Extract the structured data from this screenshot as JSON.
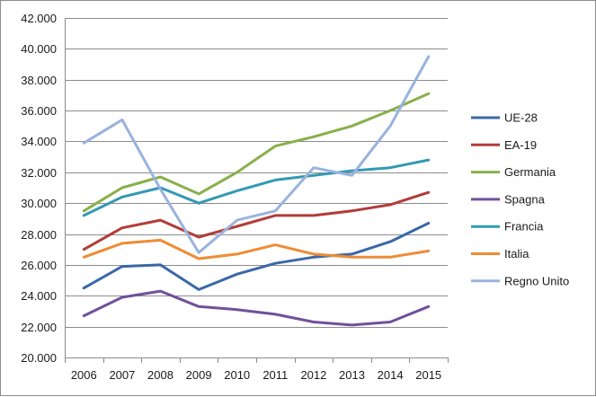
{
  "chart_data": {
    "type": "line",
    "title": "",
    "xlabel": "",
    "ylabel": "",
    "categories": [
      "2006",
      "2007",
      "2008",
      "2009",
      "2010",
      "2011",
      "2012",
      "2013",
      "2014",
      "2015"
    ],
    "ylim": [
      20000,
      42000
    ],
    "yticks": [
      20000,
      22000,
      24000,
      26000,
      28000,
      30000,
      32000,
      34000,
      36000,
      38000,
      40000,
      42000
    ],
    "ytick_labels": [
      "20.000",
      "22.000",
      "24.000",
      "26.000",
      "28.000",
      "30.000",
      "32.000",
      "34.000",
      "36.000",
      "38.000",
      "40.000",
      "42.000"
    ],
    "grid": "horizontal",
    "legend_position": "right",
    "series": [
      {
        "name": "UE-28",
        "color": "#3a68a8",
        "values": [
          24500,
          25900,
          26000,
          24400,
          25400,
          26100,
          26500,
          26700,
          27500,
          28700
        ]
      },
      {
        "name": "EA-19",
        "color": "#b23c38",
        "values": [
          27000,
          28400,
          28900,
          27800,
          28500,
          29200,
          29200,
          29500,
          29900,
          30700
        ]
      },
      {
        "name": "Germania",
        "color": "#88b04a",
        "values": [
          29500,
          31000,
          31700,
          30600,
          32000,
          33700,
          34300,
          35000,
          36000,
          37100
        ]
      },
      {
        "name": "Spagna",
        "color": "#71509a",
        "values": [
          22700,
          23900,
          24300,
          23300,
          23100,
          22800,
          22300,
          22100,
          22300,
          23300
        ]
      },
      {
        "name": "Francia",
        "color": "#3399b3",
        "values": [
          29200,
          30400,
          31000,
          30000,
          30800,
          31500,
          31800,
          32100,
          32300,
          32800
        ]
      },
      {
        "name": "Italia",
        "color": "#ee8c35",
        "values": [
          26500,
          27400,
          27600,
          26400,
          26700,
          27300,
          26700,
          26500,
          26500,
          26900
        ]
      },
      {
        "name": "Regno Unito",
        "color": "#99b3dd",
        "values": [
          33900,
          35400,
          30900,
          26800,
          28900,
          29500,
          32300,
          31800,
          35000,
          39500
        ]
      }
    ]
  }
}
